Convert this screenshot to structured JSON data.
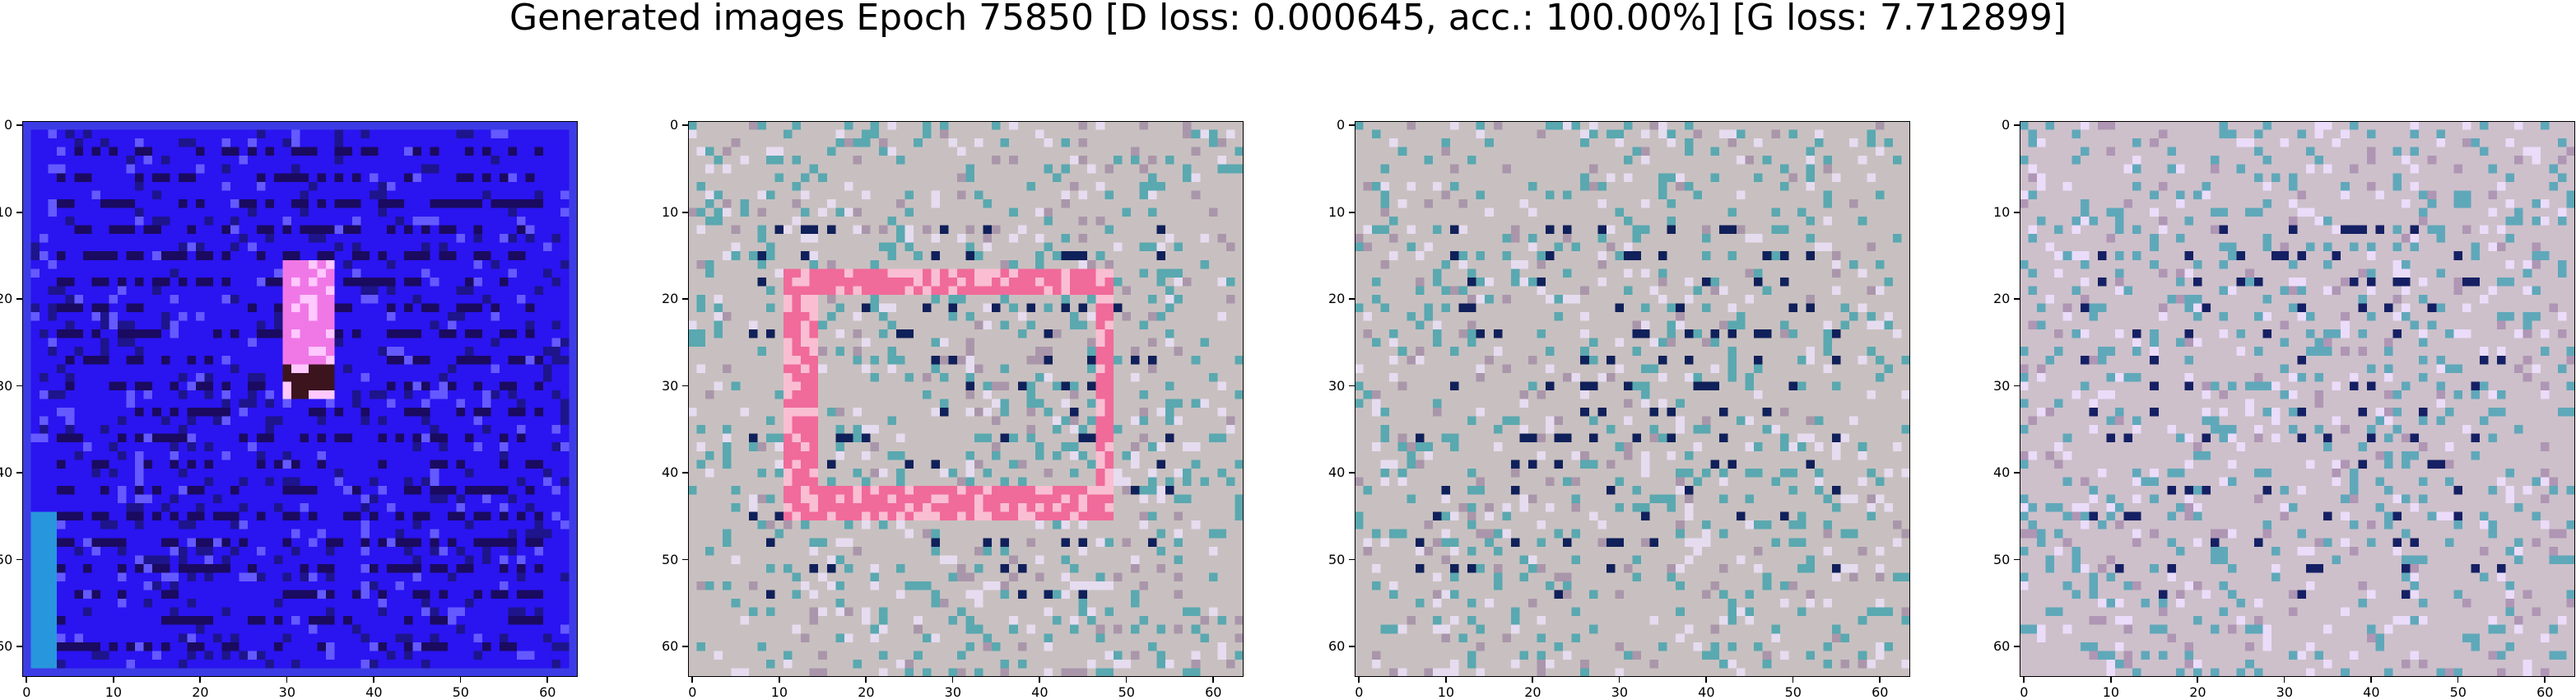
{
  "figure": {
    "title": "Generated images Epoch 75850 [D loss: 0.000645, acc.: 100.00%] [G loss: 7.712899]"
  },
  "panels": [
    {
      "id": "sample-1",
      "palette": "blue"
    },
    {
      "id": "sample-2",
      "palette": "pinkframe"
    },
    {
      "id": "sample-3",
      "palette": "gray"
    },
    {
      "id": "sample-4",
      "palette": "gray2"
    }
  ],
  "axes": {
    "x_ticks": [
      "0",
      "10",
      "20",
      "30",
      "40",
      "50",
      "60"
    ],
    "y_ticks": [
      "0",
      "10",
      "20",
      "30",
      "40",
      "50",
      "60"
    ],
    "grid_resolution": 64
  },
  "colors": {
    "blue_base": "#2a14f0",
    "blue_dark": "#1a0a60",
    "pink": "#f06a9a",
    "gray_base": "#c8c0c0",
    "teal": "#5aa8b0",
    "navy": "#10205a"
  }
}
